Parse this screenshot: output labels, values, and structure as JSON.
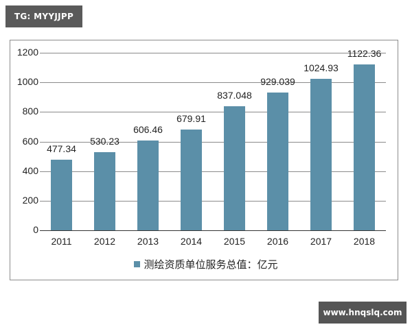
{
  "watermark_top": "TG: MYYJJPP",
  "watermark_bottom": "www.hnqslq.com",
  "colors": {
    "bar": "#5b8fa8",
    "grid": "#8a8a8a",
    "frame": "#8c8c8c",
    "watermark_bg": "#5a5a5a"
  },
  "chart_data": {
    "type": "bar",
    "title": "",
    "xlabel": "",
    "ylabel": "",
    "categories": [
      "2011",
      "2012",
      "2013",
      "2014",
      "2015",
      "2016",
      "2017",
      "2018"
    ],
    "series": [
      {
        "name": "测绘资质单位服务总值：亿元",
        "values": [
          477.34,
          530.23,
          606.46,
          679.91,
          837.048,
          929.039,
          1024.93,
          1122.36
        ],
        "labels": [
          "477.34",
          "530.23",
          "606.46",
          "679.91",
          "837.048",
          "929.039",
          "1024.93",
          "1122.36"
        ]
      }
    ],
    "ylim": [
      0,
      1200
    ],
    "yticks": [
      "0",
      "200",
      "400",
      "600",
      "800",
      "1000",
      "1200"
    ],
    "grid": true,
    "legend_position": "bottom"
  },
  "legend": {
    "label": "测绘资质单位服务总值：亿元"
  }
}
